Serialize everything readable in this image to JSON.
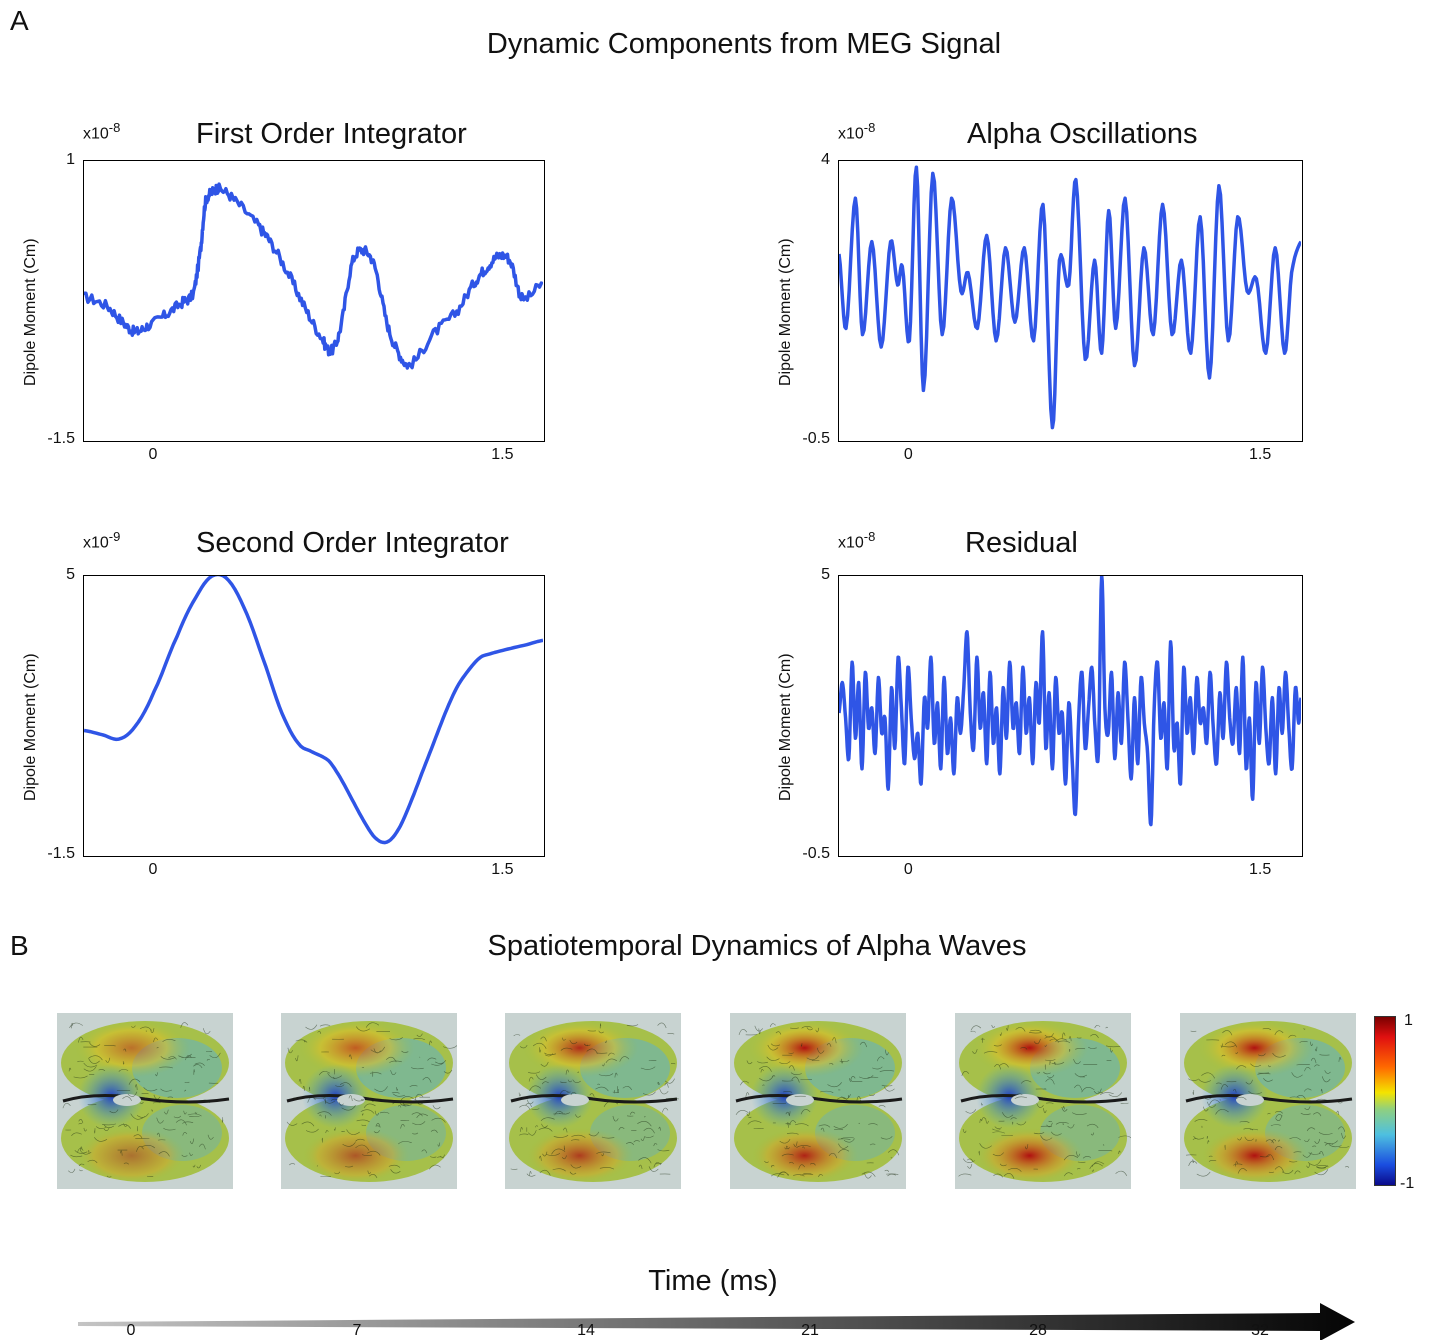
{
  "panel_a": {
    "letter": "A",
    "title": "Dynamic Components from MEG Signal"
  },
  "panel_b": {
    "letter": "B",
    "title": "Spatiotemporal Dynamics of Alpha Waves",
    "colorbar": {
      "max_label": "1",
      "min_label": "-1",
      "ramp": [
        "#7a0000",
        "#e01010",
        "#ff6a00",
        "#f4e400",
        "#8fd080",
        "#4ec0e0",
        "#1a4de0",
        "#0a0a8a"
      ]
    },
    "brain_background": "#c8d3d1",
    "time_axis": {
      "label": "Time (ms)",
      "ticks": [
        "0",
        "7",
        "14",
        "21",
        "28",
        "32"
      ]
    }
  },
  "chart_data": [
    {
      "type": "line",
      "title": "First Order Integrator",
      "exponent_base": "x10",
      "exponent_power": "-8",
      "ylabel": "Dipole Moment (Cm)",
      "xlim": [
        -0.3,
        1.67
      ],
      "ylim": [
        -1.5,
        1
      ],
      "xticks": [
        0,
        1.5
      ],
      "xtick_labels": [
        "0",
        "1.5"
      ],
      "yticks": [
        1,
        -1.5
      ],
      "ytick_labels": [
        "1",
        "-1.5"
      ],
      "noise": 0.03,
      "color": "#2f55e6",
      "series": [
        {
          "x": [
            -0.3,
            -0.2,
            -0.13,
            -0.08,
            -0.03,
            0.05,
            0.12,
            0.17,
            0.2,
            0.22,
            0.25,
            0.28,
            0.35,
            0.45,
            0.5,
            0.58,
            0.65,
            0.72,
            0.76,
            0.8,
            0.85,
            0.9,
            0.95,
            1.0,
            1.05,
            1.1,
            1.2,
            1.3,
            1.38,
            1.43,
            1.48,
            1.53,
            1.58,
            1.67
          ],
          "y": [
            -0.22,
            -0.3,
            -0.45,
            -0.53,
            -0.48,
            -0.38,
            -0.27,
            -0.18,
            0.2,
            0.62,
            0.72,
            0.75,
            0.64,
            0.42,
            0.27,
            -0.02,
            -0.32,
            -0.58,
            -0.7,
            -0.5,
            0.08,
            0.2,
            0.04,
            -0.45,
            -0.72,
            -0.82,
            -0.55,
            -0.35,
            -0.08,
            0.05,
            0.15,
            0.1,
            -0.23,
            -0.1
          ]
        }
      ]
    },
    {
      "type": "line",
      "title": "Alpha Oscillations",
      "exponent_base": "x10",
      "exponent_power": "-8",
      "ylabel": "Dipole Moment (Cm)",
      "xlim": [
        -0.3,
        1.67
      ],
      "ylim": [
        -0.5,
        4
      ],
      "xticks": [
        0,
        1.5
      ],
      "xtick_labels": [
        "0",
        "1.5"
      ],
      "yticks": [
        4,
        -0.5
      ],
      "ytick_labels": [
        "4",
        "-0.5"
      ],
      "noise": 0,
      "color": "#2f55e6",
      "series": [
        {
          "x": [
            -0.3,
            -0.27,
            -0.23,
            -0.2,
            -0.16,
            -0.12,
            -0.08,
            -0.05,
            -0.03,
            0.0,
            0.03,
            0.06,
            0.1,
            0.14,
            0.18,
            0.22,
            0.25,
            0.29,
            0.33,
            0.37,
            0.41,
            0.45,
            0.49,
            0.53,
            0.57,
            0.61,
            0.64,
            0.68,
            0.71,
            0.75,
            0.79,
            0.82,
            0.85,
            0.88,
            0.92,
            0.96,
            1.0,
            1.04,
            1.08,
            1.12,
            1.16,
            1.2,
            1.24,
            1.28,
            1.32,
            1.36,
            1.4,
            1.44,
            1.48,
            1.52,
            1.56,
            1.6,
            1.63,
            1.67
          ],
          "y": [
            2.5,
            1.3,
            3.4,
            1.2,
            2.7,
            1.0,
            2.7,
            2.0,
            2.3,
            1.1,
            3.9,
            0.3,
            3.8,
            1.2,
            3.4,
            1.9,
            2.2,
            1.3,
            2.8,
            1.1,
            2.6,
            1.4,
            2.6,
            1.1,
            3.3,
            -0.3,
            2.4,
            2.0,
            3.7,
            0.8,
            2.4,
            0.9,
            3.2,
            1.3,
            3.4,
            0.7,
            2.6,
            1.2,
            3.3,
            1.2,
            2.4,
            0.9,
            3.1,
            0.5,
            3.6,
            1.1,
            3.1,
            1.9,
            2.1,
            0.9,
            2.6,
            0.9,
            2.2,
            2.7
          ]
        }
      ]
    },
    {
      "type": "line",
      "title": "Second Order Integrator",
      "exponent_base": "x10",
      "exponent_power": "-9",
      "ylabel": "Dipole Moment (Cm)",
      "xlim": [
        -0.3,
        1.67
      ],
      "ylim": [
        -1.5,
        5
      ],
      "xticks": [
        0,
        1.5
      ],
      "xtick_labels": [
        "0",
        "1.5"
      ],
      "yticks": [
        5,
        -1.5
      ],
      "ytick_labels": [
        "5",
        "-1.5"
      ],
      "noise": 0,
      "color": "#2f55e6",
      "series": [
        {
          "x": [
            -0.3,
            -0.22,
            -0.15,
            -0.08,
            0.0,
            0.1,
            0.18,
            0.25,
            0.32,
            0.4,
            0.48,
            0.55,
            0.62,
            0.68,
            0.75,
            0.8,
            0.85,
            0.9,
            0.95,
            1.0,
            1.05,
            1.1,
            1.15,
            1.2,
            1.25,
            1.3,
            1.35,
            1.4,
            1.45,
            1.52,
            1.6,
            1.67
          ],
          "y": [
            1.4,
            1.3,
            1.2,
            1.5,
            2.3,
            3.6,
            4.5,
            5.0,
            4.9,
            4.1,
            2.9,
            1.8,
            1.1,
            0.9,
            0.7,
            0.3,
            -0.2,
            -0.7,
            -1.1,
            -1.2,
            -0.9,
            -0.3,
            0.4,
            1.1,
            1.8,
            2.4,
            2.8,
            3.1,
            3.2,
            3.3,
            3.4,
            3.5
          ]
        }
      ]
    },
    {
      "type": "line",
      "title": "Residual",
      "exponent_base": "x10",
      "exponent_power": "-8",
      "ylabel": "Dipole Moment (Cm)",
      "xlim": [
        -0.3,
        1.67
      ],
      "ylim": [
        -0.5,
        5
      ],
      "xticks": [
        0,
        1.5
      ],
      "xtick_labels": [
        "0",
        "1.5"
      ],
      "yticks": [
        5,
        -0.5
      ],
      "ytick_labels": [
        "5",
        "-0.5"
      ],
      "noise": 0,
      "color": "#2f55e6",
      "series": [
        {
          "x": [
            -0.3,
            -0.286,
            -0.272,
            -0.258,
            -0.244,
            -0.23,
            -0.216,
            -0.202,
            -0.188,
            -0.174,
            -0.16,
            -0.146,
            -0.132,
            -0.118,
            -0.104,
            -0.09,
            -0.076,
            -0.062,
            -0.048,
            -0.034,
            -0.02,
            -0.006,
            0.008,
            0.022,
            0.036,
            0.05,
            0.064,
            0.078,
            0.092,
            0.106,
            0.12,
            0.134,
            0.148,
            0.162,
            0.176,
            0.19,
            0.204,
            0.218,
            0.232,
            0.246,
            0.26,
            0.274,
            0.288,
            0.302,
            0.316,
            0.33,
            0.344,
            0.358,
            0.372,
            0.386,
            0.4,
            0.414,
            0.428,
            0.442,
            0.456,
            0.47,
            0.484,
            0.498,
            0.512,
            0.526,
            0.54,
            0.554,
            0.568,
            0.582,
            0.596,
            0.61,
            0.624,
            0.638,
            0.652,
            0.666,
            0.68,
            0.694,
            0.708,
            0.722,
            0.736,
            0.75,
            0.764,
            0.778,
            0.792,
            0.806,
            0.82,
            0.834,
            0.848,
            0.862,
            0.876,
            0.89,
            0.904,
            0.918,
            0.932,
            0.946,
            0.96,
            0.974,
            0.988,
            1.002,
            1.016,
            1.03,
            1.044,
            1.058,
            1.072,
            1.086,
            1.1,
            1.114,
            1.128,
            1.142,
            1.156,
            1.17,
            1.184,
            1.198,
            1.212,
            1.226,
            1.24,
            1.254,
            1.268,
            1.282,
            1.296,
            1.31,
            1.324,
            1.338,
            1.352,
            1.366,
            1.38,
            1.394,
            1.408,
            1.422,
            1.436,
            1.45,
            1.464,
            1.478,
            1.492,
            1.506,
            1.52,
            1.534,
            1.548,
            1.562,
            1.576,
            1.59,
            1.604,
            1.618,
            1.632,
            1.646,
            1.66,
            1.67
          ],
          "y": [
            2.3,
            2.9,
            2.2,
            1.4,
            3.3,
            1.8,
            2.9,
            1.2,
            3.1,
            2.0,
            2.4,
            1.5,
            3.0,
            1.9,
            2.2,
            0.8,
            2.8,
            1.6,
            3.4,
            2.4,
            1.3,
            3.2,
            2.2,
            1.4,
            1.9,
            0.9,
            2.6,
            2.0,
            3.4,
            1.7,
            2.5,
            1.2,
            3.0,
            1.5,
            2.2,
            1.1,
            2.6,
            1.9,
            2.8,
            3.9,
            2.3,
            1.6,
            3.4,
            2.0,
            2.7,
            1.3,
            3.1,
            1.7,
            2.4,
            1.1,
            2.8,
            1.8,
            3.3,
            2.0,
            2.5,
            1.5,
            3.2,
            1.9,
            2.6,
            1.3,
            2.9,
            2.1,
            3.9,
            1.6,
            2.7,
            1.2,
            3.0,
            1.9,
            2.3,
            0.9,
            2.5,
            1.4,
            0.3,
            2.2,
            3.1,
            1.6,
            2.4,
            3.2,
            2.0,
            1.5,
            5.0,
            2.4,
            1.9,
            3.1,
            1.4,
            2.7,
            1.7,
            3.3,
            2.2,
            1.0,
            2.6,
            1.3,
            3.0,
            2.1,
            1.5,
            0.1,
            2.4,
            3.3,
            1.8,
            2.5,
            1.2,
            3.7,
            1.6,
            2.1,
            0.9,
            3.2,
            1.9,
            2.6,
            1.5,
            3.0,
            2.1,
            2.4,
            1.7,
            3.1,
            2.0,
            1.3,
            2.7,
            1.8,
            3.3,
            2.2,
            1.7,
            2.8,
            1.5,
            3.4,
            1.2,
            2.2,
            0.6,
            2.9,
            1.7,
            3.2,
            2.0,
            1.3,
            2.6,
            1.1,
            2.8,
            1.9,
            3.1,
            2.0,
            1.2,
            2.8,
            2.1,
            2.6
          ]
        }
      ]
    }
  ]
}
